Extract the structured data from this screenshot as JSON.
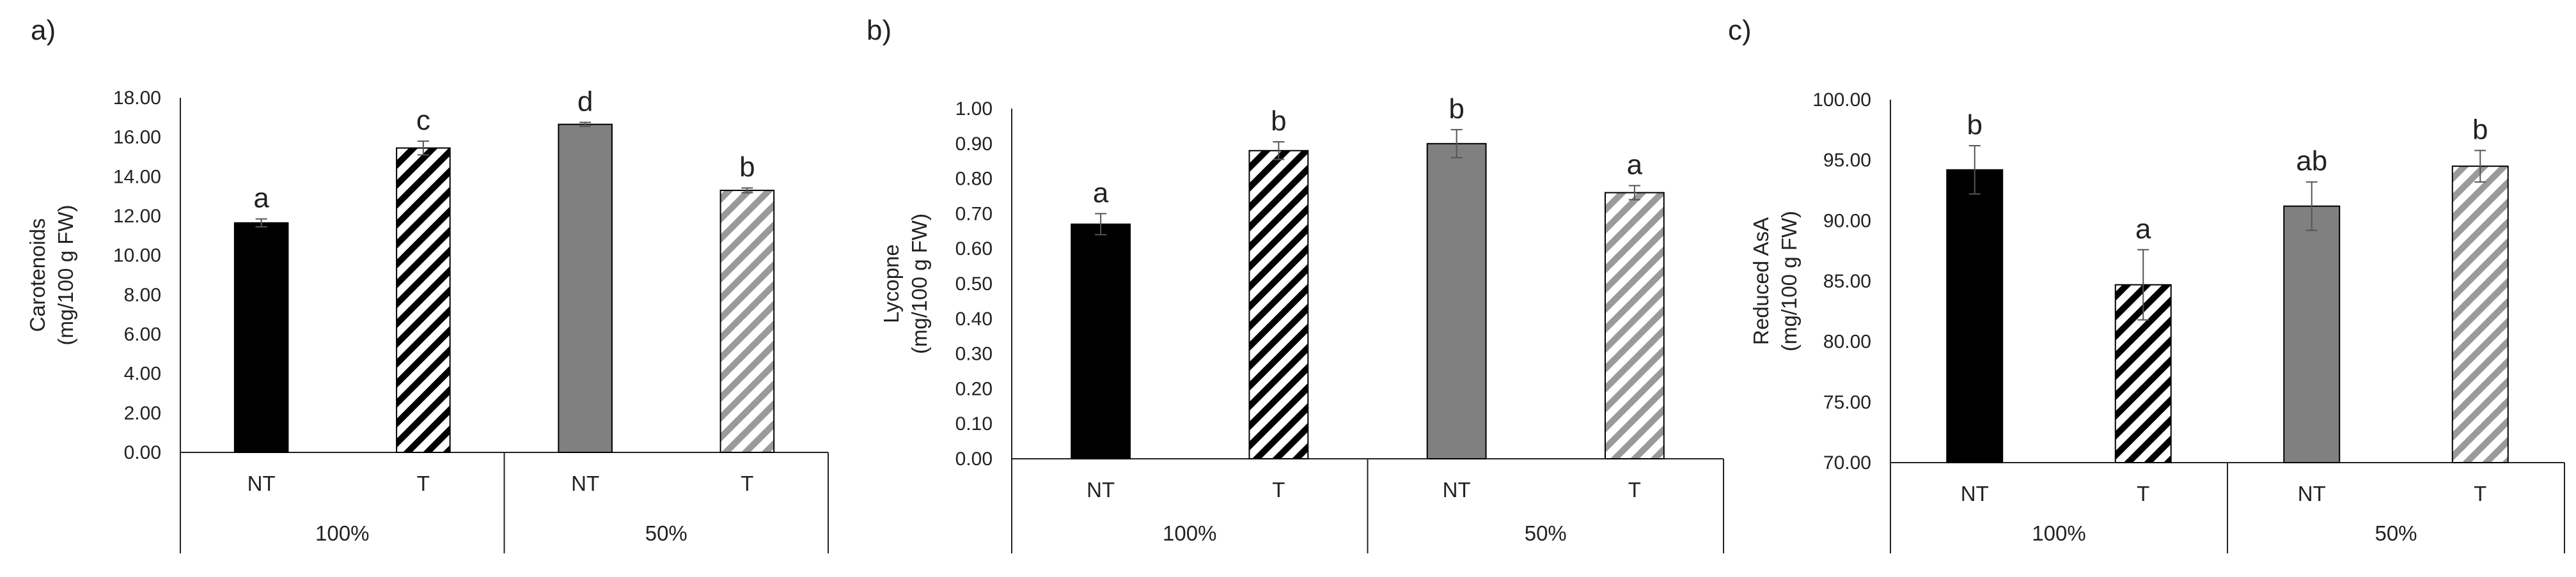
{
  "chart_data": [
    {
      "type": "bar",
      "panel_label": "a)",
      "ylabel_lines": [
        "Carotenoids",
        "(mg/100 g FW)"
      ],
      "ylim": [
        0,
        18
      ],
      "yticks": [
        "0.00",
        "2.00",
        "4.00",
        "6.00",
        "8.00",
        "10.00",
        "12.00",
        "14.00",
        "16.00",
        "18.00"
      ],
      "groups": [
        "100%",
        "50%"
      ],
      "categories": [
        "NT",
        "T",
        "NT",
        "T"
      ],
      "values": [
        11.65,
        15.45,
        16.65,
        13.3
      ],
      "errors": [
        0.2,
        0.35,
        0.1,
        0.12
      ],
      "significance": [
        "a",
        "c",
        "d",
        "b"
      ],
      "grid": false
    },
    {
      "type": "bar",
      "panel_label": "b)",
      "ylabel_lines": [
        "Lycopne",
        "(mg/100 g FW)"
      ],
      "ylim": [
        0,
        1.0
      ],
      "yticks": [
        "0.00",
        "0.10",
        "0.20",
        "0.30",
        "0.40",
        "0.50",
        "0.60",
        "0.70",
        "0.80",
        "0.90",
        "1.00"
      ],
      "groups": [
        "100%",
        "50%"
      ],
      "categories": [
        "NT",
        "T",
        "NT",
        "T"
      ],
      "values": [
        0.67,
        0.88,
        0.9,
        0.76
      ],
      "errors": [
        0.03,
        0.025,
        0.04,
        0.02
      ],
      "significance": [
        "a",
        "b",
        "b",
        "a"
      ],
      "grid": false
    },
    {
      "type": "bar",
      "panel_label": "c)",
      "ylabel_lines": [
        "Reduced AsA",
        "(mg/100 g FW)"
      ],
      "ylim": [
        70,
        100
      ],
      "yticks": [
        "70.00",
        "75.00",
        "80.00",
        "85.00",
        "90.00",
        "95.00",
        "100.00"
      ],
      "groups": [
        "100%",
        "50%"
      ],
      "categories": [
        "NT",
        "T",
        "NT",
        "T"
      ],
      "values": [
        94.2,
        84.7,
        91.2,
        94.5
      ],
      "errors": [
        2.0,
        2.9,
        2.0,
        1.3
      ],
      "significance": [
        "b",
        "a",
        "ab",
        "b"
      ],
      "grid": false
    }
  ],
  "series_styles": {
    "bar_fills": [
      "solid-black",
      "black-hatch",
      "solid-gray",
      "gray-hatch"
    ],
    "colors": {
      "black": "#000000",
      "gray": "#808080",
      "hatch_gray": "#9a9a9a",
      "axis": "#222222",
      "error": "#555555"
    }
  }
}
